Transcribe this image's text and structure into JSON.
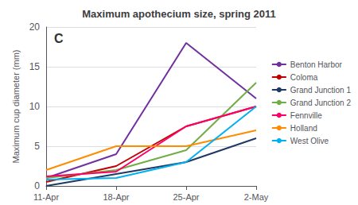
{
  "chart_data": {
    "type": "line",
    "title": "Maximum apothecium size, spring 2011",
    "ylabel": "Maximum cup diameter (mm)",
    "annotation": "C",
    "categories": [
      "11-Apr",
      "18-Apr",
      "25-Apr",
      "2-May"
    ],
    "series": [
      {
        "name": "Benton Harbor",
        "color": "#7030a0",
        "values": [
          1.0,
          4.0,
          18.0,
          11.0
        ]
      },
      {
        "name": "Coloma",
        "color": "#c00000",
        "values": [
          0.5,
          2.5,
          7.5,
          10.0
        ]
      },
      {
        "name": "Grand Junction 1",
        "color": "#1f3864",
        "values": [
          0.0,
          1.5,
          3.0,
          6.0
        ]
      },
      {
        "name": "Grand Junction 2",
        "color": "#70ad47",
        "values": [
          1.0,
          2.0,
          4.5,
          13.0
        ]
      },
      {
        "name": "Fennville",
        "color": "#ff0066",
        "values": [
          1.2,
          1.8,
          7.5,
          10.0
        ]
      },
      {
        "name": "Holland",
        "color": "#ff8c00",
        "values": [
          2.0,
          5.0,
          5.0,
          7.0
        ]
      },
      {
        "name": "West Olive",
        "color": "#00b0f0",
        "values": [
          0.8,
          1.0,
          3.0,
          10.0
        ]
      }
    ],
    "ylim": [
      0,
      20
    ],
    "yticks": [
      0,
      5,
      10,
      15,
      20
    ],
    "grid": true,
    "legend": "right"
  }
}
